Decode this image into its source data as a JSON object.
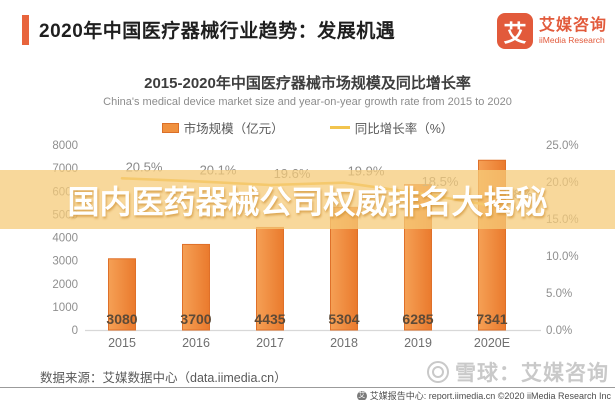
{
  "header": {
    "title": "2020年中国医疗器械行业趋势：发展机遇"
  },
  "logo": {
    "mark": "艾",
    "name_cn": "艾媒咨询",
    "name_en": "iiMedia Research",
    "color": "#e25a3b"
  },
  "chart": {
    "title": "2015-2020年中国医疗器械市场规模及同比增长率",
    "subtitle": "China's medical device market size and year-on-year growth rate from 2015 to 2020",
    "legend_bar": "市场规模（亿元）",
    "legend_line": "同比增长率（%）"
  },
  "chart_data": {
    "type": "bar",
    "title": "2015-2020年中国医疗器械市场规模及同比增长率",
    "subtitle": "China's medical device market size and year-on-year growth rate from 2015 to 2020",
    "categories": [
      "2015",
      "2016",
      "2017",
      "2018",
      "2019",
      "2020E"
    ],
    "series": [
      {
        "name": "市场规模（亿元）",
        "type": "bar",
        "axis": "left",
        "color": "#f0913f",
        "values": [
          3080,
          3700,
          4435,
          5304,
          6285,
          7341
        ]
      },
      {
        "name": "同比增长率（%）",
        "type": "line",
        "axis": "right",
        "color": "#f2c44e",
        "values": [
          20.5,
          20.1,
          19.6,
          19.9,
          18.5,
          16.8
        ],
        "point_labels": [
          "20.5%",
          "20.1%",
          "19.6%",
          "19.9%",
          "18.5%",
          "16.8%"
        ]
      }
    ],
    "left_axis": {
      "min": 0,
      "max": 8000,
      "step": 1000
    },
    "right_axis": {
      "min": 0,
      "max": 25,
      "step": 5,
      "tick_suffix": "%"
    },
    "grid": false,
    "legend_position": "top"
  },
  "overlay": {
    "text": "国内医药器械公司权威排名大揭秘"
  },
  "footer": {
    "source": "数据来源：艾媒数据中心（data.iimedia.cn）",
    "watermark": "雪球：艾媒咨询",
    "report_line": "艾媒报告中心: report.iimedia.cn ©2020 iiMedia Research Inc"
  }
}
